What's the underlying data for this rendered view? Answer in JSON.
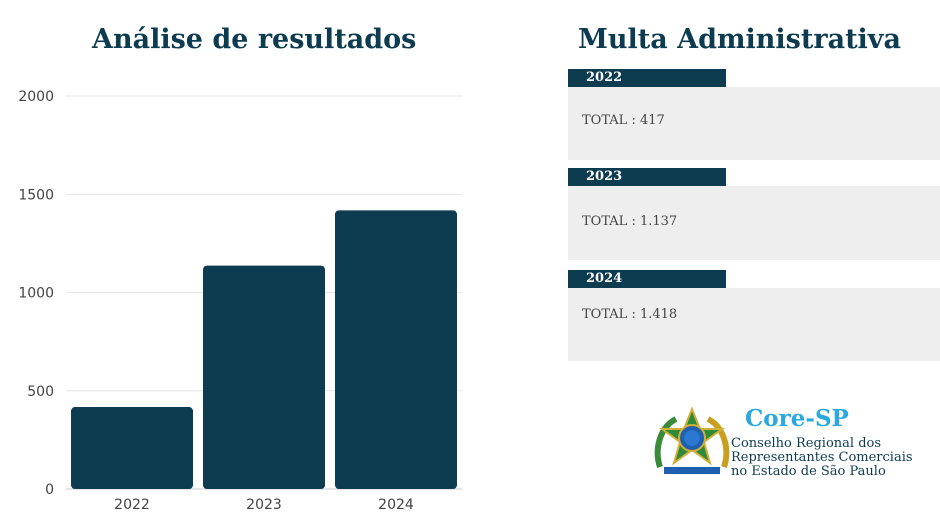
{
  "chart_data": {
    "type": "bar",
    "title": "Análise de resultados",
    "categories": [
      "2022",
      "2023",
      "2024"
    ],
    "values": [
      417,
      1137,
      1418
    ],
    "ylim": [
      0,
      2000
    ],
    "yticks": [
      "0",
      "500",
      "1000",
      "1500",
      "2000"
    ],
    "grid": true,
    "bar_color": "#0d3b50"
  },
  "panel": {
    "title": "Multa Administrativa",
    "items": [
      {
        "year": "2022",
        "total": "TOTAL : 417"
      },
      {
        "year": "2023",
        "total": "TOTAL : 1.137"
      },
      {
        "year": "2024",
        "total": "TOTAL : 1.418"
      }
    ]
  },
  "logo": {
    "icon": "coat-of-arms-of-brazil",
    "title": "Core-SP",
    "line1": "Conselho Regional dos",
    "line2": "Representantes Comerciais",
    "line3": "no Estado de São Paulo"
  },
  "colors": {
    "primary": "#0d3b50",
    "accent": "#2aa9e0",
    "box": "#eeeeee"
  }
}
